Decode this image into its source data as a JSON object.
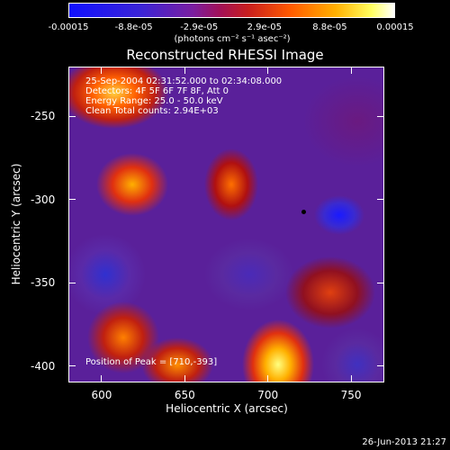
{
  "colorbar": {
    "ticks": [
      "-0.00015",
      "-8.8e-05",
      "-2.9e-05",
      "2.9e-05",
      "8.8e-05",
      "0.00015"
    ],
    "units": "(photons cm⁻² s⁻¹ asec⁻²)"
  },
  "chart_data": {
    "type": "heatmap",
    "title": "Reconstructed RHESSI Image",
    "xlabel": "Heliocentric X (arcsec)",
    "ylabel": "Heliocentric Y (arcsec)",
    "xlim": [
      580,
      770
    ],
    "ylim": [
      -410,
      -220
    ],
    "xticks": [
      "600",
      "650",
      "700",
      "750"
    ],
    "yticks": [
      "-250",
      "-300",
      "-350",
      "-400"
    ],
    "colorscale_range": [
      -0.00015,
      0.00015
    ],
    "header_lines": [
      "25-Sep-2004 02:31:52.000 to 02:34:08.000",
      "Detectors: 4F 5F 6F 7F 8F, Att 0",
      "Energy Range: 25.0 - 50.0 keV",
      "Clean      Total counts: 2.94E+03"
    ],
    "peak_label": "Position of Peak = [710,-393]",
    "colors": {
      "low": "#1010ff",
      "mid": "#7a1ea0",
      "high": "#ffffff"
    }
  },
  "footer": {
    "timestamp": "26-Jun-2013 21:27"
  }
}
